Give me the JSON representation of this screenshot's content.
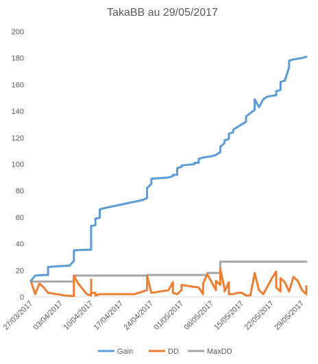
{
  "chart_data": {
    "type": "line",
    "title": "TakaBB au 29/05/2017",
    "xlabel": "",
    "ylabel": "",
    "ylim": [
      0,
      200
    ],
    "yticks": [
      0,
      20,
      40,
      60,
      80,
      100,
      120,
      140,
      160,
      180,
      200
    ],
    "xlim": [
      "2017-03-27",
      "2017-05-29"
    ],
    "xtick_labels": [
      "27/03/2017",
      "03/04/2017",
      "10/04/2017",
      "17/04/2017",
      "24/04/2017",
      "01/05/2017",
      "08/05/2017",
      "15/05/2017",
      "22/05/2017",
      "29/05/2017"
    ],
    "grid": false,
    "legend_position": "bottom",
    "series": [
      {
        "name": "Gain",
        "color": "#5b9bd5",
        "points": [
          [
            "2017-03-27",
            12
          ],
          [
            "2017-03-28",
            16
          ],
          [
            "2017-03-30",
            16.5
          ],
          [
            "2017-03-31",
            16.5
          ],
          [
            "2017-03-31",
            22.5
          ],
          [
            "2017-04-02",
            23
          ],
          [
            "2017-04-05",
            23.5
          ],
          [
            "2017-04-06",
            27
          ],
          [
            "2017-04-06",
            35
          ],
          [
            "2017-04-09",
            35.5
          ],
          [
            "2017-04-10",
            35.5
          ],
          [
            "2017-04-10",
            53.5
          ],
          [
            "2017-04-11",
            54
          ],
          [
            "2017-04-11",
            59
          ],
          [
            "2017-04-12",
            59.5
          ],
          [
            "2017-04-12",
            66
          ],
          [
            "2017-04-14",
            67.5
          ],
          [
            "2017-04-22",
            73
          ],
          [
            "2017-04-23",
            74.5
          ],
          [
            "2017-04-23",
            82
          ],
          [
            "2017-04-24",
            85
          ],
          [
            "2017-04-24",
            89
          ],
          [
            "2017-04-28",
            90
          ],
          [
            "2017-04-29",
            91
          ],
          [
            "2017-04-29",
            92
          ],
          [
            "2017-04-30",
            92
          ],
          [
            "2017-04-30",
            97
          ],
          [
            "2017-05-01",
            98
          ],
          [
            "2017-05-01",
            99
          ],
          [
            "2017-05-04",
            100
          ],
          [
            "2017-05-04",
            101
          ],
          [
            "2017-05-05",
            101
          ],
          [
            "2017-05-05",
            104
          ],
          [
            "2017-05-06",
            105
          ],
          [
            "2017-05-08",
            106
          ],
          [
            "2017-05-09",
            107
          ],
          [
            "2017-05-10",
            109
          ],
          [
            "2017-05-10",
            113
          ],
          [
            "2017-05-11",
            116
          ],
          [
            "2017-05-11",
            118
          ],
          [
            "2017-05-12",
            119
          ],
          [
            "2017-05-12",
            123
          ],
          [
            "2017-05-13",
            124
          ],
          [
            "2017-05-13",
            126
          ],
          [
            "2017-05-14",
            128
          ],
          [
            "2017-05-16",
            132
          ],
          [
            "2017-05-16",
            136
          ],
          [
            "2017-05-18",
            141
          ],
          [
            "2017-05-18",
            149
          ],
          [
            "2017-05-19",
            143
          ],
          [
            "2017-05-20",
            149
          ],
          [
            "2017-05-21",
            151
          ],
          [
            "2017-05-23",
            152
          ],
          [
            "2017-05-23",
            155
          ],
          [
            "2017-05-24",
            156
          ],
          [
            "2017-05-24",
            162
          ],
          [
            "2017-05-25",
            163
          ],
          [
            "2017-05-26",
            173
          ],
          [
            "2017-05-26",
            178
          ],
          [
            "2017-05-27",
            179
          ],
          [
            "2017-05-29",
            180
          ],
          [
            "2017-05-30",
            181
          ]
        ]
      },
      {
        "name": "DD",
        "color": "#ed7d31",
        "points": [
          [
            "2017-03-27",
            12
          ],
          [
            "2017-03-28",
            2
          ],
          [
            "2017-03-29",
            10
          ],
          [
            "2017-03-30",
            7
          ],
          [
            "2017-03-31",
            3
          ],
          [
            "2017-04-02",
            2
          ],
          [
            "2017-04-04",
            1
          ],
          [
            "2017-04-06",
            0.5
          ],
          [
            "2017-04-06",
            16
          ],
          [
            "2017-04-07",
            10
          ],
          [
            "2017-04-09",
            2
          ],
          [
            "2017-04-10",
            1
          ],
          [
            "2017-04-10",
            13
          ],
          [
            "2017-04-10",
            3
          ],
          [
            "2017-04-11",
            3
          ],
          [
            "2017-04-11",
            1
          ],
          [
            "2017-04-12",
            2
          ],
          [
            "2017-04-20",
            2
          ],
          [
            "2017-04-22",
            4
          ],
          [
            "2017-04-23",
            5
          ],
          [
            "2017-04-23",
            16
          ],
          [
            "2017-04-24",
            3
          ],
          [
            "2017-04-26",
            4
          ],
          [
            "2017-04-28",
            5
          ],
          [
            "2017-04-29",
            11
          ],
          [
            "2017-04-29",
            3
          ],
          [
            "2017-04-30",
            2
          ],
          [
            "2017-05-01",
            5
          ],
          [
            "2017-05-01",
            9
          ],
          [
            "2017-05-05",
            7
          ],
          [
            "2017-05-06",
            2
          ],
          [
            "2017-05-06",
            10
          ],
          [
            "2017-05-07",
            17
          ],
          [
            "2017-05-09",
            5
          ],
          [
            "2017-05-09",
            12
          ],
          [
            "2017-05-10",
            9
          ],
          [
            "2017-05-10",
            21
          ],
          [
            "2017-05-11",
            6
          ],
          [
            "2017-05-11",
            4
          ],
          [
            "2017-05-12",
            11
          ],
          [
            "2017-05-12",
            2
          ],
          [
            "2017-05-13",
            2
          ],
          [
            "2017-05-14",
            3
          ],
          [
            "2017-05-15",
            3
          ],
          [
            "2017-05-16",
            1
          ],
          [
            "2017-05-17",
            1
          ],
          [
            "2017-05-18",
            18
          ],
          [
            "2017-05-19",
            5
          ],
          [
            "2017-05-20",
            2
          ],
          [
            "2017-05-22",
            14
          ],
          [
            "2017-05-23",
            19
          ],
          [
            "2017-05-23",
            7
          ],
          [
            "2017-05-24",
            4
          ],
          [
            "2017-05-24",
            14
          ],
          [
            "2017-05-25",
            11
          ],
          [
            "2017-05-26",
            4
          ],
          [
            "2017-05-27",
            15
          ],
          [
            "2017-05-28",
            12
          ],
          [
            "2017-05-29",
            5
          ],
          [
            "2017-05-30",
            2
          ],
          [
            "2017-05-30",
            8
          ]
        ]
      },
      {
        "name": "MaxDD",
        "color": "#a5a5a5",
        "points": [
          [
            "2017-03-27",
            11.5
          ],
          [
            "2017-04-06",
            11.5
          ],
          [
            "2017-04-06",
            16
          ],
          [
            "2017-04-23",
            16
          ],
          [
            "2017-04-23",
            16.5
          ],
          [
            "2017-05-07",
            16.5
          ],
          [
            "2017-05-07",
            18
          ],
          [
            "2017-05-10",
            18
          ],
          [
            "2017-05-10",
            26.5
          ],
          [
            "2017-05-30",
            26.5
          ]
        ]
      }
    ]
  }
}
